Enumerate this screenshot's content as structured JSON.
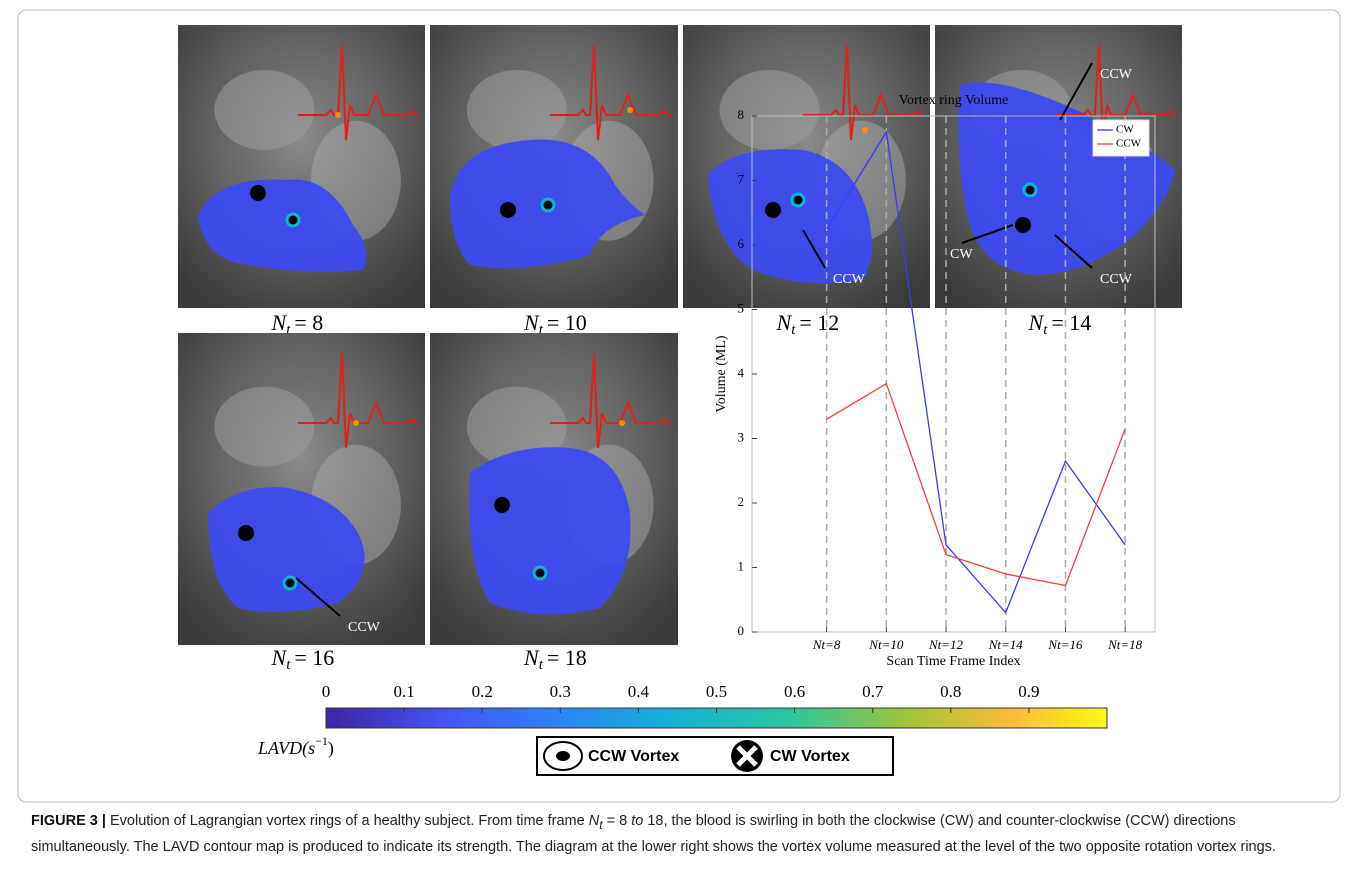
{
  "panels": [
    {
      "symbol": "N",
      "subscript": "t",
      "value": "= 8",
      "annotations": []
    },
    {
      "symbol": "N",
      "subscript": "t",
      "value": "= 10",
      "annotations": []
    },
    {
      "symbol": "N",
      "subscript": "t",
      "value": "= 12",
      "annotations": [
        "CCW"
      ]
    },
    {
      "symbol": "N",
      "subscript": "t",
      "value": "= 14",
      "annotations": [
        "CCW",
        "CW",
        "CCW"
      ]
    },
    {
      "symbol": "N",
      "subscript": "t",
      "value": "= 16",
      "annotations": [
        "CCW"
      ]
    },
    {
      "symbol": "N",
      "subscript": "t",
      "value": "= 18",
      "annotations": []
    }
  ],
  "chart_data": {
    "type": "line",
    "title": "Vortex ring Volume",
    "x_label": "Scan Time Frame Index",
    "y_label": "Volume (ML)",
    "x": [
      8,
      10,
      12,
      14,
      16,
      18
    ],
    "series": [
      {
        "name": "CW",
        "color": "#3a3aff",
        "values": [
          6.25,
          7.75,
          1.35,
          0.3,
          2.65,
          1.35
        ]
      },
      {
        "name": "CCW",
        "color": "#ff3a3a",
        "values": [
          3.3,
          3.85,
          1.2,
          0.9,
          0.72,
          3.15
        ]
      }
    ],
    "xlim": [
      5.5,
      19
    ],
    "ylim": [
      0,
      8
    ],
    "xticks": [
      {
        "value": 8,
        "label": "Nt=8"
      },
      {
        "value": 10,
        "label": "Nt=10"
      },
      {
        "value": 12,
        "label": "Nt=12"
      },
      {
        "value": 14,
        "label": "Nt=14"
      },
      {
        "value": 16,
        "label": "Nt=16"
      },
      {
        "value": 18,
        "label": "Nt=18"
      }
    ],
    "yticks": [
      0,
      1,
      2,
      3,
      4,
      5,
      6,
      7,
      8
    ],
    "grid": "x-dashed",
    "legend": "upper-right"
  },
  "colorbar": {
    "lim": [
      0,
      1
    ],
    "ticks": [
      0,
      0.1,
      0.2,
      0.3,
      0.4,
      0.5,
      0.6,
      0.7,
      0.8,
      0.9
    ],
    "label_base": "LAVD(s",
    "label_sup": "−1",
    "label_close": ")"
  },
  "vortex_legend": [
    "CCW Vortex",
    "CW Vortex"
  ],
  "caption": {
    "label": "FIGURE 3 |",
    "text_a": " Evolution of Lagrangian vortex rings of a healthy subject. From time frame ",
    "symbol": "N",
    "subscript": "t",
    "text_b": " = 8 ",
    "italic": "to",
    "text_c": " 18, the blood is swirling in both the clockwise (CW) and counter-clockwise (CCW) directions simultaneously. The LAVD contour map is produced to indicate its strength. The diagram at the lower right shows the vortex volume measured at the level of the two opposite rotation vortex rings."
  }
}
